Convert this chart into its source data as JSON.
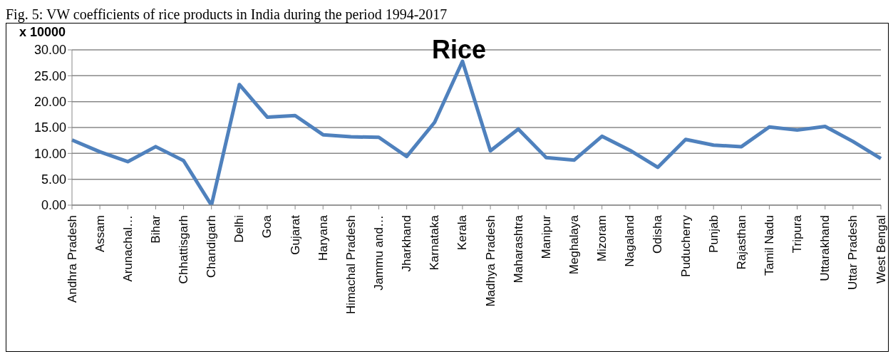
{
  "chart_data": {
    "type": "line",
    "title": "Rice",
    "ylabel": "x 10000",
    "annotations": [
      "Fig. 5: VW coefficients of rice products in India during the period 1994-2017"
    ],
    "categories": [
      "Andhra Pradesh",
      "Assam",
      "Arunachal…",
      "Bihar",
      "Chhattisgarh",
      "Chandigarh",
      "Delhi",
      "Goa",
      "Gujarat",
      "Haryana",
      "Himachal Pradesh",
      "Jammu and…",
      "Jharkhand",
      "Karnataka",
      "Kerala",
      "Madhya Pradesh",
      "Maharashtra",
      "Manipur",
      "Meghalaya",
      "Mizoram",
      "Nagaland",
      "Odisha",
      "Puducherry",
      "Punjab",
      "Rajasthan",
      "Tamil Nadu",
      "Tripura",
      "Uttarakhand",
      "Uttar Pradesh",
      "West Bengal"
    ],
    "series": [
      {
        "color": "#4f81bd",
        "values": [
          12.6,
          10.3,
          8.4,
          11.3,
          8.6,
          0,
          23.3,
          17.0,
          17.3,
          13.6,
          13.2,
          13.1,
          9.4,
          16.0,
          27.8,
          10.5,
          14.7,
          9.2,
          8.7,
          13.3,
          10.6,
          7.3,
          12.7,
          11.6,
          11.3,
          15.1,
          14.5,
          15.2,
          12.3,
          9.0
        ]
      }
    ],
    "ylim": [
      0,
      30
    ],
    "yticks": [
      {
        "value": 0,
        "label": "0.00"
      },
      {
        "value": 5,
        "label": "5.00"
      },
      {
        "value": 10,
        "label": "10.00"
      },
      {
        "value": 15,
        "label": "15.00"
      },
      {
        "value": 20,
        "label": "20.00"
      },
      {
        "value": 25,
        "label": "25.00"
      },
      {
        "value": 30,
        "label": "30.00"
      }
    ],
    "grid": "y",
    "legend": false,
    "marker": "none",
    "line_style": "solid"
  }
}
